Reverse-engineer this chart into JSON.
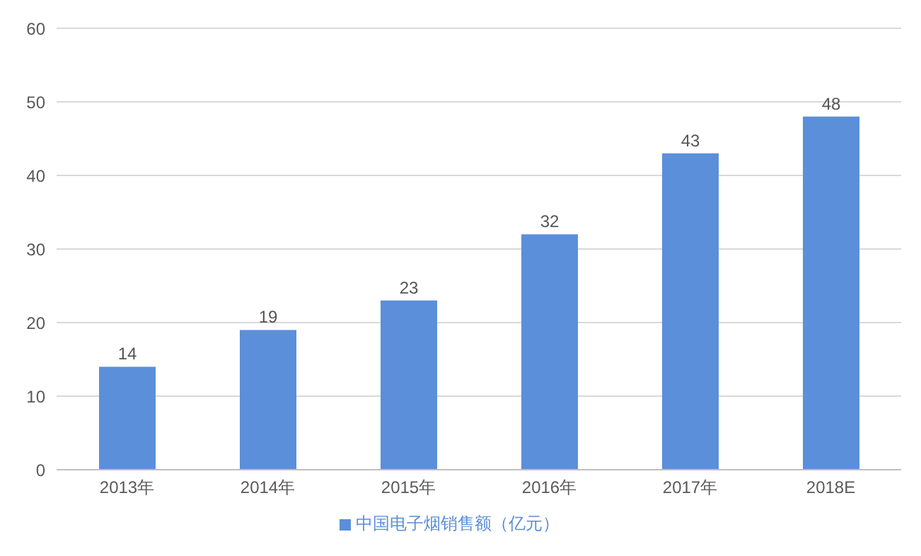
{
  "chart_data": {
    "type": "bar",
    "categories": [
      "2013年",
      "2014年",
      "2015年",
      "2016年",
      "2017年",
      "2018E"
    ],
    "series": [
      {
        "name": "中国电子烟销售额（亿元）",
        "color": "#5b8fd9",
        "values": [
          14,
          19,
          23,
          32,
          43,
          48
        ]
      }
    ],
    "ylim": [
      0,
      60
    ],
    "yticks": [
      0,
      10,
      20,
      30,
      40,
      50,
      60
    ],
    "grid": "y",
    "legend": "bottom",
    "data_labels": true
  }
}
